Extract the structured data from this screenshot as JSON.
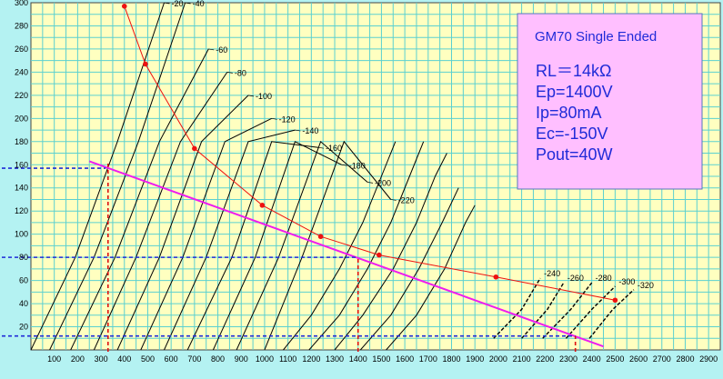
{
  "chart_data": {
    "type": "line",
    "title": "GM70 Single Ended",
    "info_lines": [
      "RL＝14kΩ",
      "Ep=1400V",
      "Ip=80mA",
      "Ec=-150V",
      "Pout=40W"
    ],
    "x_ticks": [
      "100",
      "200",
      "300",
      "400",
      "500",
      "600",
      "700",
      "800",
      "900",
      "1000",
      "1100",
      "1200",
      "1300",
      "1400",
      "1500",
      "1600",
      "1700",
      "1800",
      "1900",
      "2000",
      "2100",
      "2200",
      "2300",
      "2400",
      "2500",
      "2600",
      "2700",
      "2800",
      "2900"
    ],
    "y_ticks": [
      "20",
      "40",
      "60",
      "80",
      "100",
      "120",
      "140",
      "160",
      "180",
      "200",
      "220",
      "240",
      "260",
      "280",
      "300"
    ],
    "xlim": [
      0,
      2950
    ],
    "ylim": [
      0,
      300
    ],
    "grid": true,
    "plate_curves": [
      {
        "label": "-20",
        "x": [
          0,
          190,
          370,
          570
        ],
        "y": [
          0,
          80,
          180,
          300
        ]
      },
      {
        "label": "-40",
        "x": [
          80,
          270,
          460,
          660
        ],
        "y": [
          0,
          80,
          180,
          300
        ]
      },
      {
        "label": "-60",
        "x": [
          170,
          360,
          550,
          760
        ],
        "y": [
          0,
          80,
          180,
          260
        ]
      },
      {
        "label": "-80",
        "x": [
          270,
          450,
          640,
          840
        ],
        "y": [
          0,
          80,
          180,
          240
        ]
      },
      {
        "label": "-100",
        "x": [
          370,
          550,
          730,
          930
        ],
        "y": [
          0,
          80,
          180,
          220
        ]
      },
      {
        "label": "-120",
        "x": [
          470,
          650,
          830,
          1030
        ],
        "y": [
          0,
          80,
          180,
          200
        ]
      },
      {
        "label": "-140",
        "x": [
          570,
          750,
          930,
          1130
        ],
        "y": [
          0,
          80,
          180,
          190
        ]
      },
      {
        "label": "-160",
        "x": [
          670,
          860,
          1030,
          1230
        ],
        "y": [
          0,
          80,
          180,
          175
        ]
      },
      {
        "label": "-180",
        "x": [
          780,
          960,
          1130,
          1330
        ],
        "y": [
          0,
          80,
          180,
          160
        ]
      },
      {
        "label": "-200",
        "x": [
          880,
          1060,
          1240,
          1440
        ],
        "y": [
          0,
          80,
          180,
          145
        ]
      },
      {
        "label": "-220",
        "x": [
          1000,
          1160,
          1340,
          1540
        ],
        "y": [
          0,
          80,
          180,
          130
        ]
      }
    ],
    "extra_curves": [
      {
        "x": [
          1080,
          1200,
          1320,
          1420,
          1500,
          1560
        ],
        "y": [
          0,
          30,
          70,
          110,
          150,
          180
        ]
      },
      {
        "x": [
          1190,
          1320,
          1440,
          1540,
          1620,
          1680
        ],
        "y": [
          0,
          30,
          70,
          110,
          150,
          180
        ]
      },
      {
        "x": [
          1300,
          1420,
          1550,
          1650,
          1730,
          1780
        ],
        "y": [
          0,
          30,
          70,
          110,
          150,
          170
        ]
      },
      {
        "x": [
          1410,
          1540,
          1660,
          1760,
          1830
        ],
        "y": [
          0,
          30,
          70,
          110,
          140
        ]
      },
      {
        "x": [
          1520,
          1650,
          1770,
          1860,
          1900
        ],
        "y": [
          0,
          30,
          70,
          110,
          125
        ]
      }
    ],
    "dashed_curves": [
      {
        "label": "-240",
        "x": [
          1980,
          2100,
          2180
        ],
        "y": [
          10,
          35,
          62
        ]
      },
      {
        "label": "-260",
        "x": [
          2100,
          2210,
          2280
        ],
        "y": [
          10,
          35,
          58
        ]
      },
      {
        "label": "-280",
        "x": [
          2190,
          2310,
          2400
        ],
        "y": [
          10,
          35,
          58
        ]
      },
      {
        "label": "-300",
        "x": [
          2290,
          2400,
          2500
        ],
        "y": [
          10,
          35,
          55
        ]
      },
      {
        "label": "-320",
        "x": [
          2390,
          2490,
          2580
        ],
        "y": [
          10,
          35,
          52
        ]
      }
    ],
    "dissipation_curve": {
      "x": [
        400,
        490,
        700,
        990,
        1240,
        1490,
        1990,
        2500
      ],
      "y": [
        297,
        247,
        174,
        125,
        98,
        82,
        63,
        43
      ]
    },
    "load_line": {
      "x": [
        250,
        2450
      ],
      "y": [
        163,
        3
      ]
    },
    "h_dashed": [
      {
        "y": 157,
        "x_to": 320
      },
      {
        "y": 80,
        "x_to": 1400
      },
      {
        "y": 12,
        "x_to": 2330
      }
    ],
    "v_dashed": [
      {
        "x": 330,
        "y_to": 162
      },
      {
        "x": 1400,
        "y_to": 80
      },
      {
        "x": 2330,
        "y_to": 12
      }
    ],
    "colors": {
      "plot_bg": "#ffffc0",
      "outer_bg": "#b4f2f2",
      "grid": "#5bd0d0",
      "curve": "#000000",
      "dissipation": "#ee1111",
      "load_line": "#ee1dee",
      "dash_blue": "#1f2bd8",
      "dash_red": "#dd1111",
      "info_bg": "#ffbfff",
      "info_text": "#1f2bd8"
    }
  }
}
